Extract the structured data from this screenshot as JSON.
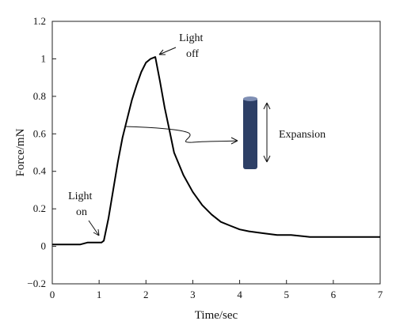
{
  "chart_data": {
    "type": "line",
    "xlabel": "Time/sec",
    "ylabel": "Force/mN",
    "xlim": [
      0,
      7
    ],
    "ylim": [
      -0.2,
      1.2
    ],
    "x_ticks": [
      "0",
      "1",
      "2",
      "3",
      "4",
      "5",
      "6",
      "7"
    ],
    "y_ticks": [
      "−0.2",
      "0",
      "0.2",
      "0.4",
      "0.6",
      "0.8",
      "1",
      "1.2"
    ],
    "grid": false,
    "series": [
      {
        "x": [
          0,
          0.3,
          0.6,
          0.75,
          0.9,
          1.05,
          1.1,
          1.2,
          1.3,
          1.4,
          1.5,
          1.6,
          1.7,
          1.8,
          1.9,
          2.0,
          2.1,
          2.2,
          2.3,
          2.4,
          2.5,
          2.6,
          2.8,
          3.0,
          3.2,
          3.4,
          3.6,
          3.8,
          4.0,
          4.2,
          4.5,
          4.8,
          5.1,
          5.5,
          6.0,
          6.5,
          7.0
        ],
        "y": [
          0.01,
          0.01,
          0.01,
          0.02,
          0.02,
          0.02,
          0.03,
          0.15,
          0.3,
          0.45,
          0.58,
          0.68,
          0.78,
          0.86,
          0.93,
          0.98,
          1.0,
          1.01,
          0.88,
          0.74,
          0.62,
          0.5,
          0.38,
          0.29,
          0.22,
          0.17,
          0.13,
          0.11,
          0.09,
          0.08,
          0.07,
          0.06,
          0.06,
          0.05,
          0.05,
          0.05,
          0.05
        ],
        "color": "#000000"
      }
    ],
    "annotations": [
      {
        "text_lines": [
          "Light",
          "on"
        ],
        "at": [
          1.05,
          0.02
        ]
      },
      {
        "text_lines": [
          "Light",
          "off"
        ],
        "at": [
          2.2,
          1.01
        ]
      },
      {
        "text": "Expansion"
      }
    ],
    "inset": {
      "cylinder_color": "#2d3f66"
    }
  }
}
